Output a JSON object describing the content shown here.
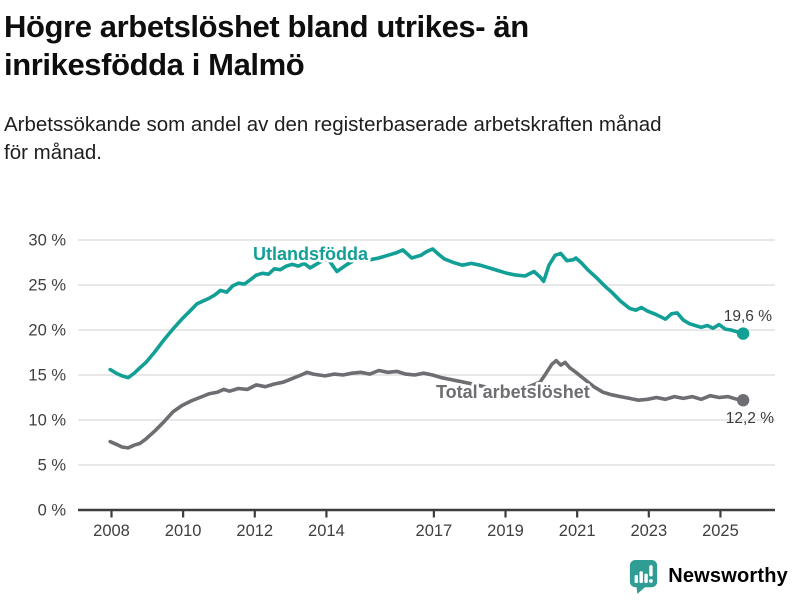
{
  "header": {
    "title_lines": [
      "Högre arbetslöshet bland utrikes- än",
      "inrikesfödda i Malmö"
    ],
    "subtitle_lines": [
      "Arbetssökande som andel av den registerbaserade arbetskraften månad",
      "för månad."
    ]
  },
  "chart_data": {
    "type": "line",
    "title": "Högre arbetslöshet bland utrikes- än inrikesfödda i Malmö",
    "subtitle": "Arbetssökande som andel av den registerbaserade arbetskraften månad för månad.",
    "unit": "%",
    "ylim": [
      0,
      30
    ],
    "y_ticks": [
      0,
      5,
      10,
      15,
      20,
      25,
      30
    ],
    "y_tick_suffix": " %",
    "x_tick_years": [
      2008,
      2010,
      2012,
      2014,
      2017,
      2019,
      2021,
      2023,
      2025
    ],
    "x_range": [
      2008.0,
      2025.67
    ],
    "grid": "horizontal-only",
    "legend": "inline-labels",
    "colors": {
      "grid": "#d9d9d9",
      "axis": "#3d3d3d",
      "text": "#3f3f3f"
    },
    "series": [
      {
        "name": "Utlandsfödda",
        "color": "#12a096",
        "end_label": "19,6 %",
        "end_value": 19.6,
        "points": [
          [
            2008.0,
            15.6
          ],
          [
            2008.17,
            15.2
          ],
          [
            2008.33,
            14.9
          ],
          [
            2008.5,
            14.7
          ],
          [
            2008.67,
            15.2
          ],
          [
            2008.83,
            15.8
          ],
          [
            2009.0,
            16.4
          ],
          [
            2009.25,
            17.6
          ],
          [
            2009.5,
            18.9
          ],
          [
            2009.75,
            20.1
          ],
          [
            2010.0,
            21.2
          ],
          [
            2010.25,
            22.2
          ],
          [
            2010.42,
            22.9
          ],
          [
            2010.58,
            23.2
          ],
          [
            2010.75,
            23.5
          ],
          [
            2010.92,
            23.9
          ],
          [
            2011.08,
            24.4
          ],
          [
            2011.25,
            24.2
          ],
          [
            2011.42,
            24.9
          ],
          [
            2011.58,
            25.2
          ],
          [
            2011.75,
            25.1
          ],
          [
            2011.92,
            25.6
          ],
          [
            2012.08,
            26.1
          ],
          [
            2012.25,
            26.3
          ],
          [
            2012.42,
            26.2
          ],
          [
            2012.58,
            26.8
          ],
          [
            2012.75,
            26.7
          ],
          [
            2012.92,
            27.1
          ],
          [
            2013.08,
            27.3
          ],
          [
            2013.25,
            27.1
          ],
          [
            2013.42,
            27.4
          ],
          [
            2013.58,
            26.9
          ],
          [
            2013.75,
            27.3
          ],
          [
            2013.92,
            27.7
          ],
          [
            2014.08,
            27.9
          ],
          [
            2014.33,
            26.5
          ],
          [
            2014.58,
            27.2
          ],
          [
            2014.83,
            27.8
          ],
          [
            2015.08,
            28.1
          ],
          [
            2015.25,
            27.8
          ],
          [
            2015.5,
            28.0
          ],
          [
            2015.75,
            28.3
          ],
          [
            2016.0,
            28.6
          ],
          [
            2016.17,
            28.9
          ],
          [
            2016.42,
            28.0
          ],
          [
            2016.67,
            28.3
          ],
          [
            2016.83,
            28.7
          ],
          [
            2017.0,
            29.0
          ],
          [
            2017.17,
            28.4
          ],
          [
            2017.33,
            27.9
          ],
          [
            2017.58,
            27.5
          ],
          [
            2017.83,
            27.2
          ],
          [
            2018.08,
            27.4
          ],
          [
            2018.33,
            27.2
          ],
          [
            2018.58,
            26.9
          ],
          [
            2018.83,
            26.6
          ],
          [
            2019.08,
            26.3
          ],
          [
            2019.33,
            26.1
          ],
          [
            2019.58,
            26.0
          ],
          [
            2019.83,
            26.5
          ],
          [
            2020.0,
            25.9
          ],
          [
            2020.1,
            25.4
          ],
          [
            2020.25,
            27.2
          ],
          [
            2020.42,
            28.3
          ],
          [
            2020.58,
            28.5
          ],
          [
            2020.75,
            27.7
          ],
          [
            2020.92,
            27.8
          ],
          [
            2021.0,
            28.0
          ],
          [
            2021.17,
            27.4
          ],
          [
            2021.33,
            26.7
          ],
          [
            2021.58,
            25.8
          ],
          [
            2021.83,
            24.8
          ],
          [
            2022.0,
            24.2
          ],
          [
            2022.25,
            23.2
          ],
          [
            2022.5,
            22.4
          ],
          [
            2022.67,
            22.2
          ],
          [
            2022.83,
            22.5
          ],
          [
            2023.0,
            22.1
          ],
          [
            2023.25,
            21.7
          ],
          [
            2023.5,
            21.2
          ],
          [
            2023.67,
            21.8
          ],
          [
            2023.83,
            21.9
          ],
          [
            2024.0,
            21.1
          ],
          [
            2024.17,
            20.7
          ],
          [
            2024.33,
            20.5
          ],
          [
            2024.5,
            20.3
          ],
          [
            2024.67,
            20.5
          ],
          [
            2024.83,
            20.2
          ],
          [
            2025.0,
            20.6
          ],
          [
            2025.17,
            20.1
          ],
          [
            2025.33,
            20.0
          ],
          [
            2025.5,
            19.8
          ],
          [
            2025.67,
            19.6
          ]
        ]
      },
      {
        "name": "Total arbetslöshet",
        "color": "#6e6e72",
        "end_label": "12,2 %",
        "end_value": 12.2,
        "points": [
          [
            2008.0,
            7.6
          ],
          [
            2008.17,
            7.3
          ],
          [
            2008.33,
            7.0
          ],
          [
            2008.5,
            6.9
          ],
          [
            2008.67,
            7.2
          ],
          [
            2008.83,
            7.4
          ],
          [
            2009.0,
            7.9
          ],
          [
            2009.25,
            8.8
          ],
          [
            2009.5,
            9.8
          ],
          [
            2009.75,
            10.9
          ],
          [
            2010.0,
            11.6
          ],
          [
            2010.25,
            12.1
          ],
          [
            2010.5,
            12.5
          ],
          [
            2010.75,
            12.9
          ],
          [
            2011.0,
            13.1
          ],
          [
            2011.17,
            13.4
          ],
          [
            2011.33,
            13.2
          ],
          [
            2011.58,
            13.5
          ],
          [
            2011.83,
            13.4
          ],
          [
            2012.08,
            13.9
          ],
          [
            2012.33,
            13.7
          ],
          [
            2012.58,
            14.0
          ],
          [
            2012.83,
            14.2
          ],
          [
            2013.08,
            14.6
          ],
          [
            2013.33,
            15.0
          ],
          [
            2013.5,
            15.3
          ],
          [
            2013.67,
            15.1
          ],
          [
            2013.83,
            15.0
          ],
          [
            2014.0,
            14.9
          ],
          [
            2014.25,
            15.1
          ],
          [
            2014.5,
            15.0
          ],
          [
            2014.75,
            15.2
          ],
          [
            2015.0,
            15.3
          ],
          [
            2015.25,
            15.1
          ],
          [
            2015.5,
            15.5
          ],
          [
            2015.75,
            15.3
          ],
          [
            2016.0,
            15.4
          ],
          [
            2016.25,
            15.1
          ],
          [
            2016.5,
            15.0
          ],
          [
            2016.75,
            15.2
          ],
          [
            2017.0,
            15.0
          ],
          [
            2017.25,
            14.7
          ],
          [
            2017.5,
            14.5
          ],
          [
            2017.75,
            14.3
          ],
          [
            2018.0,
            14.1
          ],
          [
            2018.33,
            13.8
          ],
          [
            2018.67,
            13.5
          ],
          [
            2019.0,
            13.3
          ],
          [
            2019.25,
            13.2
          ],
          [
            2019.5,
            13.4
          ],
          [
            2019.75,
            13.8
          ],
          [
            2020.0,
            14.2
          ],
          [
            2020.17,
            15.2
          ],
          [
            2020.33,
            16.2
          ],
          [
            2020.45,
            16.6
          ],
          [
            2020.58,
            16.1
          ],
          [
            2020.7,
            16.4
          ],
          [
            2020.83,
            15.8
          ],
          [
            2021.0,
            15.3
          ],
          [
            2021.25,
            14.5
          ],
          [
            2021.5,
            13.7
          ],
          [
            2021.75,
            13.1
          ],
          [
            2022.0,
            12.8
          ],
          [
            2022.25,
            12.6
          ],
          [
            2022.5,
            12.4
          ],
          [
            2022.75,
            12.2
          ],
          [
            2023.0,
            12.3
          ],
          [
            2023.25,
            12.5
          ],
          [
            2023.5,
            12.3
          ],
          [
            2023.75,
            12.6
          ],
          [
            2024.0,
            12.4
          ],
          [
            2024.25,
            12.6
          ],
          [
            2024.5,
            12.3
          ],
          [
            2024.75,
            12.7
          ],
          [
            2025.0,
            12.5
          ],
          [
            2025.25,
            12.6
          ],
          [
            2025.5,
            12.3
          ],
          [
            2025.67,
            12.2
          ]
        ]
      }
    ]
  },
  "footer": {
    "brand": "Newsworthy",
    "logo_color": "#2f9d93"
  }
}
